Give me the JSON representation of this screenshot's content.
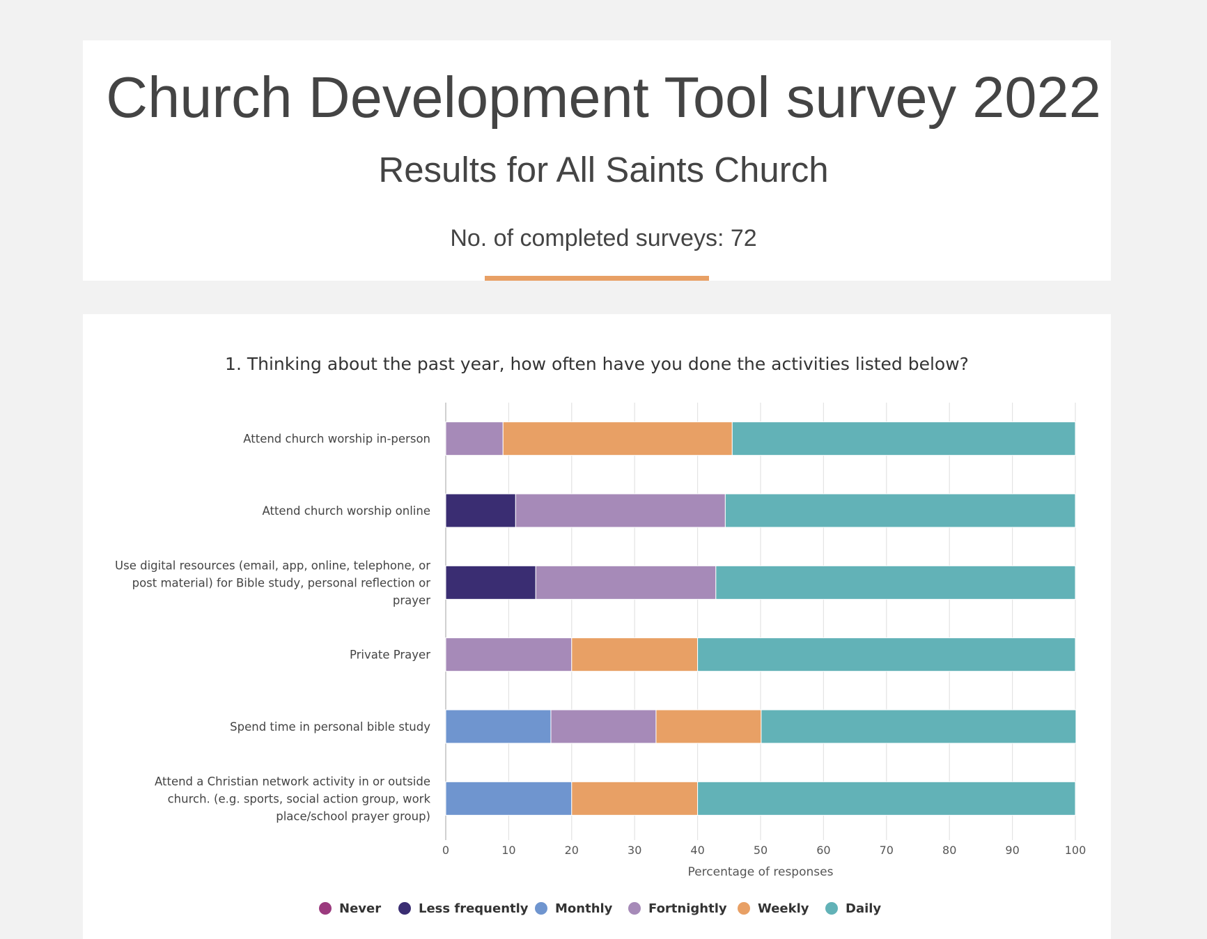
{
  "header": {
    "title": "Church Development Tool survey 2022",
    "subtitle": "Results for All Saints Church",
    "survey_count": "No. of completed surveys: 72"
  },
  "colors": {
    "Never": "#9b3a7e",
    "Less frequently": "#3a2d72",
    "Monthly": "#6f95cf",
    "Fortnightly": "#a68ab8",
    "Weekly": "#e8a065",
    "Daily": "#62b2b7",
    "accent": "#e8a065"
  },
  "chart_data": {
    "type": "bar",
    "orientation": "horizontal",
    "stacked": true,
    "title": "1. Thinking about the past year, how often have you done the activities listed below?",
    "xlabel": "Percentage of responses",
    "xlim": [
      0,
      100
    ],
    "xticks": [
      0,
      10,
      20,
      30,
      40,
      50,
      60,
      70,
      80,
      90,
      100
    ],
    "grid": true,
    "legend_position": "bottom",
    "categories": [
      [
        "Attend church worship in-person"
      ],
      [
        "Attend church worship online"
      ],
      [
        "Use digital resources (email, app, online, telephone, or",
        "post material) for Bible study, personal reflection or",
        "prayer"
      ],
      [
        "Private Prayer"
      ],
      [
        "Spend time in personal bible study"
      ],
      [
        "Attend a Christian network activity in or outside",
        "church. (e.g. sports, social action group, work",
        "place/school prayer group)"
      ]
    ],
    "series": [
      {
        "name": "Never",
        "values": [
          0,
          0,
          0,
          0,
          0,
          0
        ]
      },
      {
        "name": "Less frequently",
        "values": [
          0,
          11.1,
          14.3,
          0,
          0,
          0
        ]
      },
      {
        "name": "Monthly",
        "values": [
          0,
          0,
          0,
          0,
          16.7,
          20
        ]
      },
      {
        "name": "Fortnightly",
        "values": [
          9.1,
          33.3,
          28.6,
          20,
          16.7,
          0
        ]
      },
      {
        "name": "Weekly",
        "values": [
          36.4,
          0,
          0,
          20,
          16.7,
          20
        ]
      },
      {
        "name": "Daily",
        "values": [
          54.5,
          55.6,
          57.1,
          60,
          50,
          60
        ]
      }
    ]
  }
}
